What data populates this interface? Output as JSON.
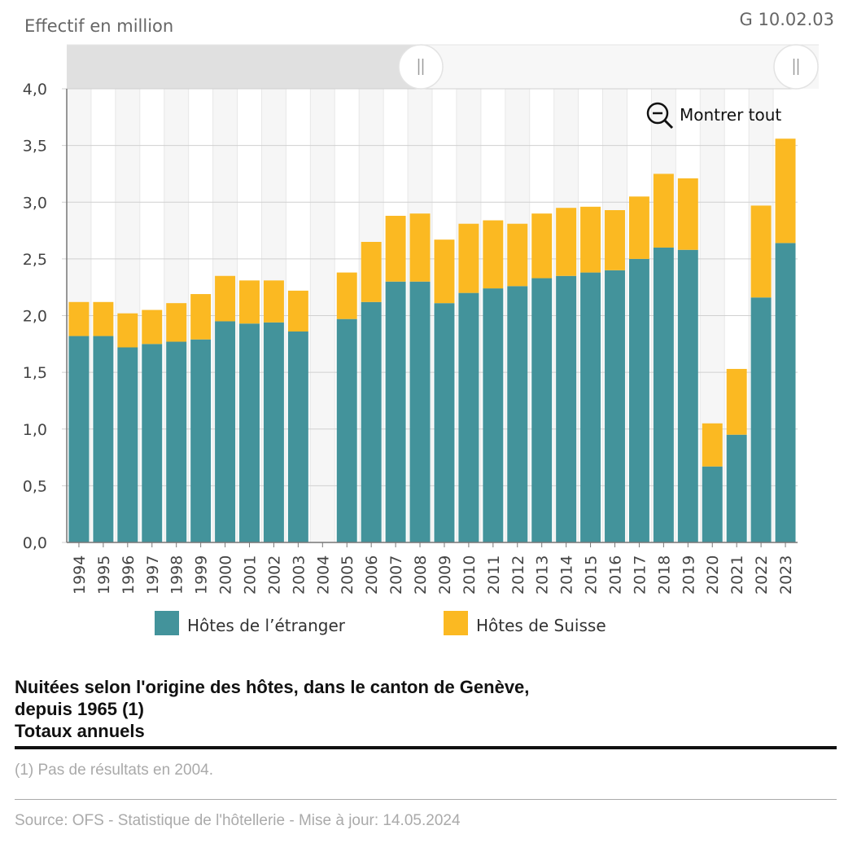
{
  "header": {
    "unit_label": "Effectif en million",
    "chart_id": "G 10.02.03"
  },
  "zoom_button": {
    "label": "Montrer tout",
    "icon": "zoom-out-icon"
  },
  "caption": {
    "line1": "Nuitées selon l'origine des hôtes, dans le canton de Genève,",
    "line2": "depuis 1965 (1)",
    "line3": "Totaux annuels"
  },
  "footnote": "(1) Pas de résultats en 2004.",
  "source": "Source: OFS - Statistique de l'hôtellerie  - Mise à jour: 14.05.2024",
  "colors": {
    "foreign": "#43939b",
    "swiss": "#fbb922",
    "navigator": "#e0e0e0"
  },
  "chart_data": {
    "type": "bar",
    "stacked": true,
    "ylabel": "Effectif en million",
    "ylim": [
      0,
      4
    ],
    "yticks": [
      "0,0",
      "0,5",
      "1,0",
      "1,5",
      "2,0",
      "2,5",
      "3,0",
      "3,5",
      "4,0"
    ],
    "grid": true,
    "legend_position": "bottom",
    "categories": [
      "1994",
      "1995",
      "1996",
      "1997",
      "1998",
      "1999",
      "2000",
      "2001",
      "2002",
      "2003",
      "2004",
      "2005",
      "2006",
      "2007",
      "2008",
      "2009",
      "2010",
      "2011",
      "2012",
      "2013",
      "2014",
      "2015",
      "2016",
      "2017",
      "2018",
      "2019",
      "2020",
      "2021",
      "2022",
      "2023"
    ],
    "series": [
      {
        "name": "Hôtes de l’étranger",
        "values": [
          1.82,
          1.82,
          1.72,
          1.75,
          1.77,
          1.79,
          1.95,
          1.93,
          1.94,
          1.86,
          null,
          1.97,
          2.12,
          2.3,
          2.3,
          2.11,
          2.2,
          2.24,
          2.26,
          2.33,
          2.35,
          2.38,
          2.4,
          2.5,
          2.6,
          2.58,
          0.67,
          0.95,
          2.16,
          2.64
        ]
      },
      {
        "name": "Hôtes de Suisse",
        "values": [
          0.3,
          0.3,
          0.3,
          0.3,
          0.34,
          0.4,
          0.4,
          0.38,
          0.37,
          0.36,
          null,
          0.41,
          0.53,
          0.58,
          0.6,
          0.56,
          0.61,
          0.6,
          0.55,
          0.57,
          0.6,
          0.58,
          0.53,
          0.55,
          0.65,
          0.63,
          0.38,
          0.58,
          0.81,
          0.92
        ]
      }
    ]
  }
}
